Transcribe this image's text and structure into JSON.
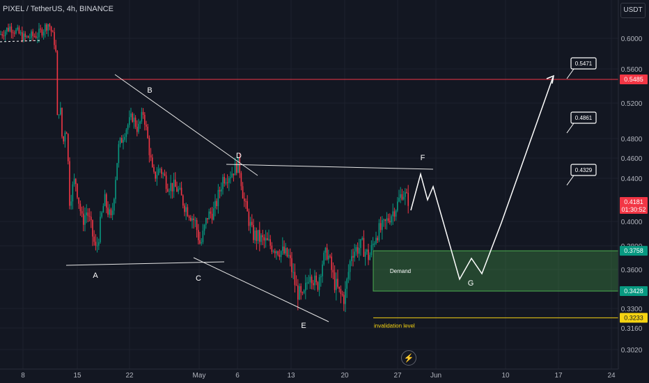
{
  "header": {
    "title": "PIXEL / TetherUS, 4h, BINANCE",
    "currency": "USDT"
  },
  "chart_data": {
    "type": "candlestick",
    "symbol": "PIXEL / TetherUS",
    "timeframe": "4h",
    "exchange": "BINANCE",
    "ylim": [
      0.29,
      0.65
    ],
    "y_ticks": [
      "0.6000",
      "0.5600",
      "0.5200",
      "0.4800",
      "0.4600",
      "0.4400",
      "0.4000",
      "0.3800",
      "0.3600",
      "0.3300",
      "0.3160",
      "0.3020"
    ],
    "x_ticks": [
      "8",
      "15",
      "22",
      "May",
      "6",
      "13",
      "20",
      "27",
      "Jun",
      "10",
      "17",
      "24"
    ],
    "price_labels": [
      {
        "text": "0.5485",
        "color": "#f23645"
      },
      {
        "text": "0.4181",
        "color": "#f23645",
        "sub": "01:30:52"
      },
      {
        "text": "0.3758",
        "color": "#089981"
      },
      {
        "text": "0.3428",
        "color": "#089981"
      },
      {
        "text": "0.3233",
        "color": "#f5d312"
      }
    ],
    "resistance_level": 0.5485,
    "demand_zone": {
      "label": "Demand",
      "top": 0.3758,
      "bottom": 0.3428
    },
    "invalidation": {
      "label": "invalidation level",
      "price": 0.3233
    },
    "wave_labels": [
      "A",
      "B",
      "C",
      "D",
      "E",
      "F",
      "G"
    ],
    "targets": [
      "0.5471",
      "0.4861",
      "0.4329"
    ],
    "current_price": 0.4181
  },
  "footer": {
    "flash_icon": "lightning-icon"
  }
}
